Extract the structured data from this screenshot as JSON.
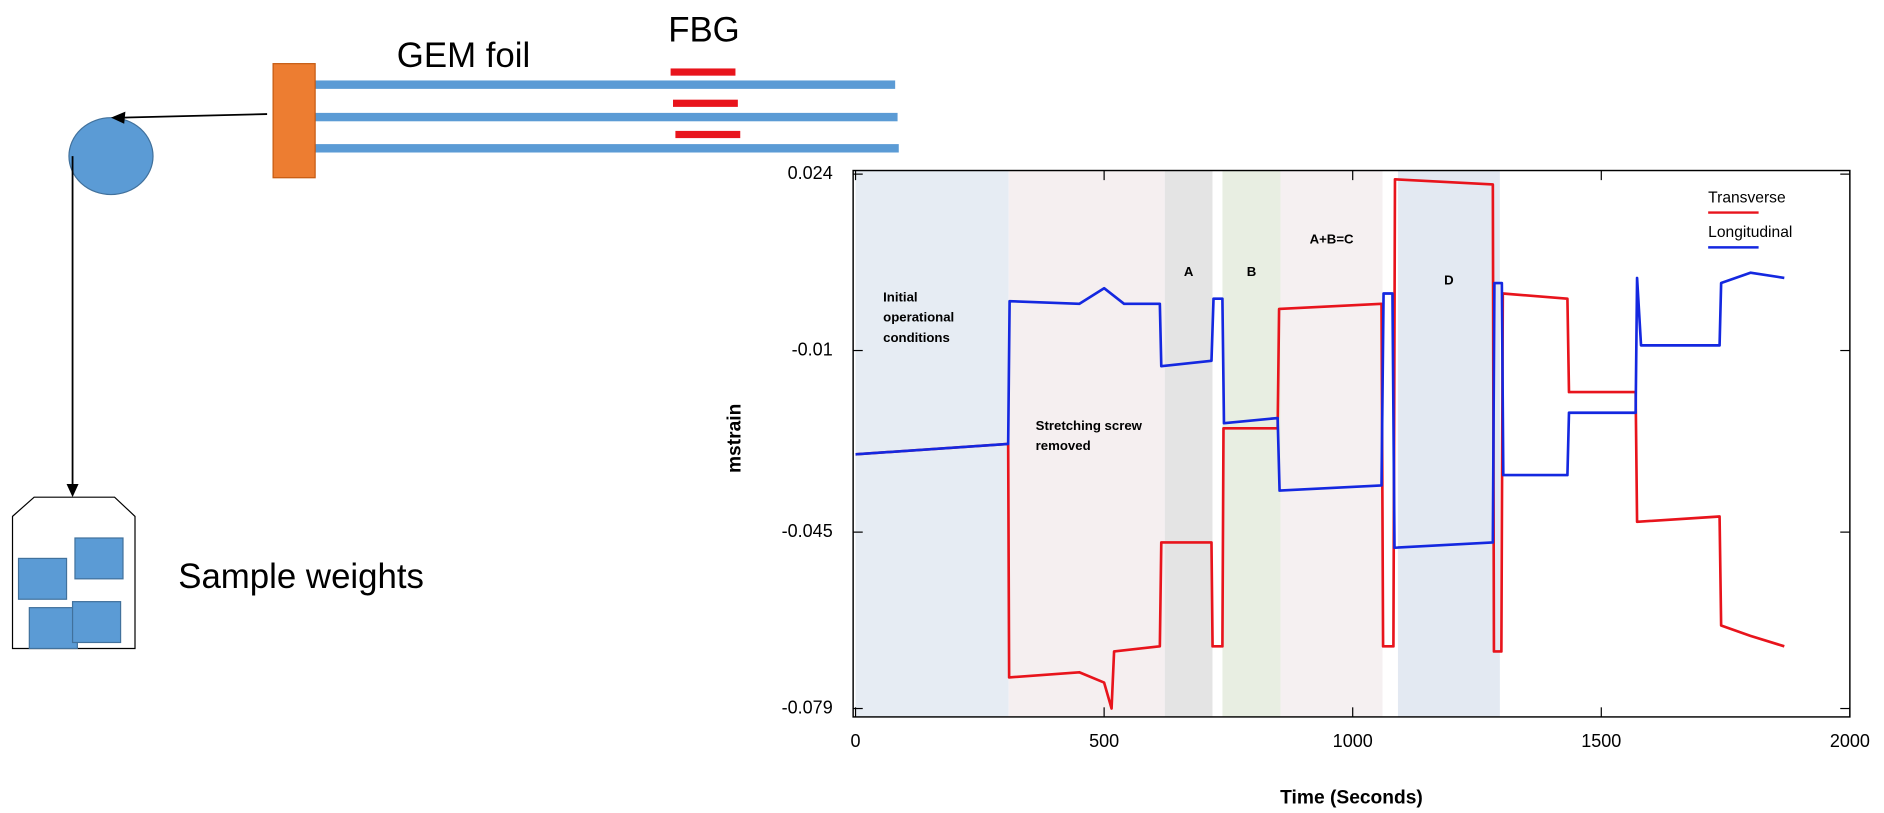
{
  "diagram": {
    "foil_label": "GEM foil",
    "sensor_label": "FBG",
    "weights_label": "Sample weights"
  },
  "chart_data": {
    "type": "line",
    "x_label": "Time (Seconds)",
    "y_label": "mstrain",
    "xlim": [
      0,
      2000
    ],
    "xticks": [
      0,
      500,
      1000,
      1500,
      2000
    ],
    "ylim": [
      -0.079,
      0.024
    ],
    "yticks": [
      -0.079,
      -0.045,
      -0.01,
      0.024
    ],
    "legend": "upper right",
    "regions": [
      {
        "x": [
          0,
          308
        ],
        "color": "#e6ecf3",
        "label": [
          "Initial",
          "operational",
          "conditions"
        ]
      },
      {
        "x": [
          308,
          622
        ],
        "color": "#f5eff0",
        "label": [
          "Stretching screw",
          "removed"
        ]
      },
      {
        "x": [
          622,
          718
        ],
        "color": "#e4e4e4",
        "label": [
          "A"
        ]
      },
      {
        "x": [
          738,
          855
        ],
        "color": "#e8eee2",
        "label": [
          "B"
        ]
      },
      {
        "x": [
          855,
          1060
        ],
        "color": "#f5f0f1",
        "label": [
          "A+B=C"
        ]
      },
      {
        "x": [
          1091,
          1296
        ],
        "color": "#e3e9f2",
        "label": [
          "D"
        ]
      }
    ],
    "series": [
      {
        "name": "Transverse",
        "color": "#e8141c",
        "x": [
          0,
          307,
          309,
          450,
          500,
          515,
          520,
          612,
          615,
          716,
          718,
          738,
          740,
          849,
          852,
          1058,
          1061,
          1082,
          1085,
          1282,
          1284,
          1299,
          1302,
          1432,
          1435,
          1569,
          1572,
          1738,
          1741,
          1800,
          1868
        ],
        "values": [
          -0.03,
          -0.028,
          -0.073,
          -0.072,
          -0.074,
          -0.079,
          -0.068,
          -0.067,
          -0.047,
          -0.047,
          -0.067,
          -0.067,
          -0.025,
          -0.025,
          -0.002,
          -0.001,
          -0.067,
          -0.067,
          0.023,
          0.022,
          -0.068,
          -0.068,
          0.001,
          0.0,
          -0.018,
          -0.018,
          -0.043,
          -0.042,
          -0.063,
          -0.065,
          -0.067
        ]
      },
      {
        "name": "Longitudinal",
        "color": "#1428e0",
        "x": [
          0,
          307,
          310,
          450,
          500,
          540,
          612,
          615,
          716,
          720,
          738,
          741,
          849,
          853,
          1058,
          1062,
          1080,
          1084,
          1282,
          1285,
          1300,
          1303,
          1432,
          1435,
          1569,
          1572,
          1580,
          1738,
          1741,
          1800,
          1868
        ],
        "values": [
          -0.03,
          -0.028,
          -0.0005,
          -0.001,
          0.002,
          -0.001,
          -0.001,
          -0.013,
          -0.012,
          0.0,
          0.0,
          -0.024,
          -0.023,
          -0.037,
          -0.036,
          0.001,
          0.001,
          -0.048,
          -0.047,
          0.003,
          0.003,
          -0.034,
          -0.034,
          -0.022,
          -0.022,
          0.004,
          -0.009,
          -0.009,
          0.003,
          0.005,
          0.004
        ]
      }
    ]
  }
}
